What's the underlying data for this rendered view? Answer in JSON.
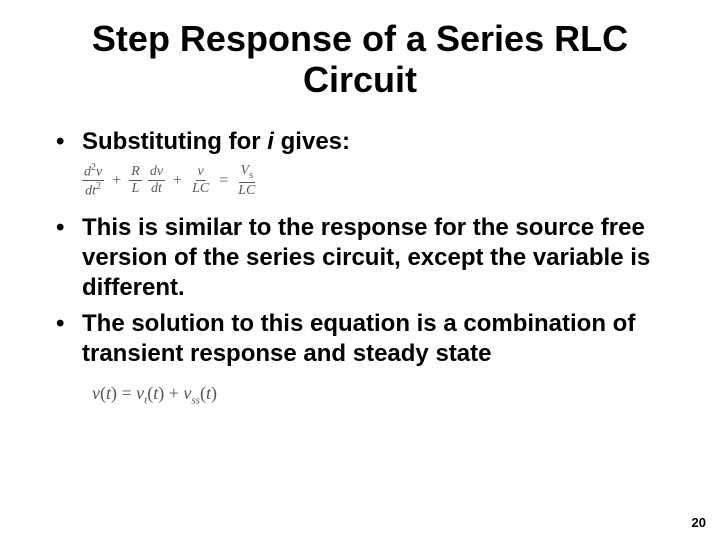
{
  "title": "Step Response of a Series RLC Circuit",
  "bullets": {
    "b1_pre": "Substituting for ",
    "b1_var": "i",
    "b1_post": " gives:",
    "b2": "This is similar to the response for the source free version of the series circuit, except the variable is different.",
    "b3": "The solution to this equation is a combination of transient response and steady state"
  },
  "equation1": {
    "t1_num": "d²v",
    "t1_den": "dt²",
    "plus1": "+",
    "t2_num": "R",
    "t2_den": "L",
    "t3_num": "dv",
    "t3_den": "dt",
    "plus2": "+",
    "t4_num": "v",
    "t4_den": "LC",
    "eq": "=",
    "t5_num": "Vₛ",
    "t5_den": "LC"
  },
  "equation2": "v(t) = vₜ(t) + vₛₛ(t)",
  "page_number": "20",
  "colors": {
    "bg": "#ffffff",
    "text": "#000000",
    "eq_text": "#595959"
  }
}
